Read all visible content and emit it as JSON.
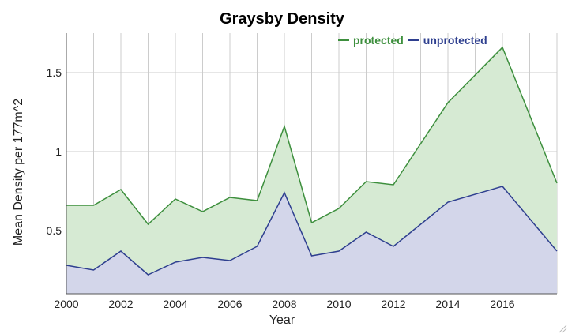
{
  "chart_data": {
    "type": "area",
    "title": "Graysby Density",
    "xlabel": "Year",
    "ylabel": "Mean Density per 177m^2",
    "x": [
      2000,
      2001,
      2002,
      2003,
      2004,
      2005,
      2006,
      2007,
      2008,
      2009,
      2010,
      2011,
      2012,
      2014,
      2016,
      2018
    ],
    "series": [
      {
        "name": "protected",
        "color": "#3d8f3d",
        "fill": "#d6ead3",
        "values": [
          0.66,
          0.66,
          0.76,
          0.54,
          0.7,
          0.62,
          0.71,
          0.69,
          1.16,
          0.55,
          0.64,
          0.81,
          0.79,
          1.31,
          1.66,
          0.8
        ]
      },
      {
        "name": "unprotected",
        "color": "#2e3f8f",
        "fill": "#d3d6ea",
        "values": [
          0.28,
          0.25,
          0.37,
          0.22,
          0.3,
          0.33,
          0.31,
          0.4,
          0.74,
          0.34,
          0.37,
          0.49,
          0.4,
          0.68,
          0.78,
          0.37
        ]
      }
    ],
    "xlim": [
      2000,
      2018
    ],
    "ylim": [
      0.1,
      1.75
    ],
    "xticks": [
      "2000",
      "2002",
      "2004",
      "2006",
      "2008",
      "2010",
      "2012",
      "2014",
      "2016"
    ],
    "yticks": [
      "0.5",
      "1",
      "1.5"
    ],
    "grid": true,
    "legend": "top-right"
  }
}
